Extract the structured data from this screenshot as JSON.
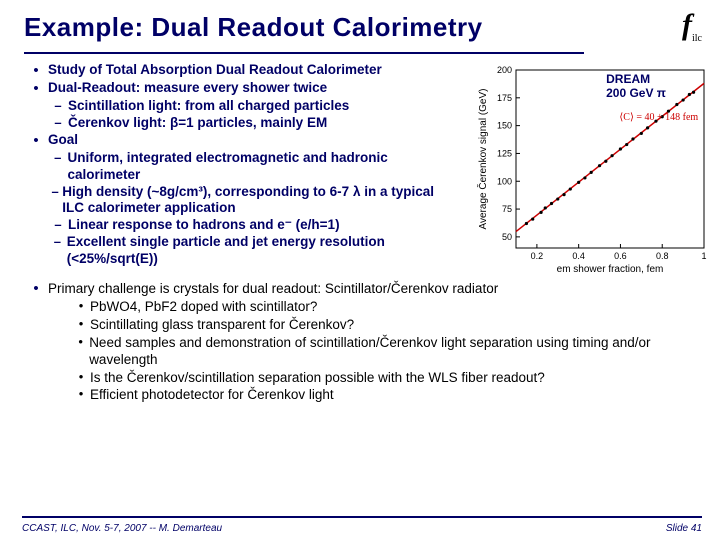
{
  "title": "Example: Dual Readout Calorimetry",
  "logo": "f",
  "logo_sub": "ilc",
  "bullets": {
    "b1": "Study of Total Absorption Dual Readout Calorimeter",
    "b2": "Dual-Readout: measure every shower twice",
    "b2a": "Scintillation light: from all charged particles",
    "b2b": "Čerenkov light: β=1 particles, mainly EM",
    "b3": "Goal",
    "b3a": "Uniform, integrated electromagnetic and hadronic calorimeter",
    "b3b": "High density (~8g/cm³), corresponding to 6-7 λ in  a typical ILC calorimeter application",
    "b3c": "Linear response to hadrons and e⁻ (e/h=1)",
    "b3d": "Excellent single particle and jet energy resolution  (<25%/sqrt(E))",
    "b4": "Primary challenge is crystals for dual readout: Scintillator/Čerenkov radiator",
    "b4a": "PbWO4, PbF2 doped with scintillator?",
    "b4b": "Scintillating glass transparent for Čerenkov?",
    "b4c": "Need samples and demonstration of scintillation/Čerenkov light separation using timing and/or wavelength",
    "b4d": "Is the Čerenkov/scintillation separation possible with the WLS fiber readout?",
    "b4e": "Efficient photodetector for Čerenkov light"
  },
  "chart": {
    "label1": "DREAM",
    "label2": "200 GeV π",
    "x_label": "em shower fraction, fem",
    "y_label": "Average Čerenkov signal (GeV)",
    "fit_text": "⟨C⟩ = 40 + 148 fem",
    "xlim": [
      0.1,
      1.0
    ],
    "ylim": [
      40,
      200
    ],
    "xticks": [
      0.2,
      0.4,
      0.6,
      0.8,
      1.0
    ],
    "yticks": [
      50,
      75,
      100,
      125,
      150,
      175,
      200
    ],
    "line_color": "#cc0000",
    "marker_color": "#000000",
    "background": "#ffffff",
    "axis_color": "#000000",
    "title_fontsize": 12,
    "label_fontsize": 10,
    "points": [
      [
        0.15,
        62
      ],
      [
        0.18,
        66
      ],
      [
        0.22,
        72
      ],
      [
        0.24,
        76
      ],
      [
        0.27,
        80
      ],
      [
        0.3,
        84
      ],
      [
        0.33,
        88
      ],
      [
        0.36,
        93
      ],
      [
        0.4,
        99
      ],
      [
        0.43,
        103
      ],
      [
        0.46,
        108
      ],
      [
        0.5,
        114
      ],
      [
        0.53,
        118
      ],
      [
        0.56,
        123
      ],
      [
        0.6,
        129
      ],
      [
        0.63,
        133
      ],
      [
        0.66,
        138
      ],
      [
        0.7,
        143
      ],
      [
        0.73,
        148
      ],
      [
        0.77,
        154
      ],
      [
        0.8,
        158
      ],
      [
        0.83,
        163
      ],
      [
        0.87,
        169
      ],
      [
        0.9,
        173
      ],
      [
        0.93,
        178
      ],
      [
        0.95,
        180
      ]
    ]
  },
  "footer": {
    "left": "CCAST, ILC, Nov. 5-7, 2007 -- M. Demarteau",
    "right": "Slide 41"
  },
  "colors": {
    "accent": "#000066",
    "line": "#cc0000"
  }
}
